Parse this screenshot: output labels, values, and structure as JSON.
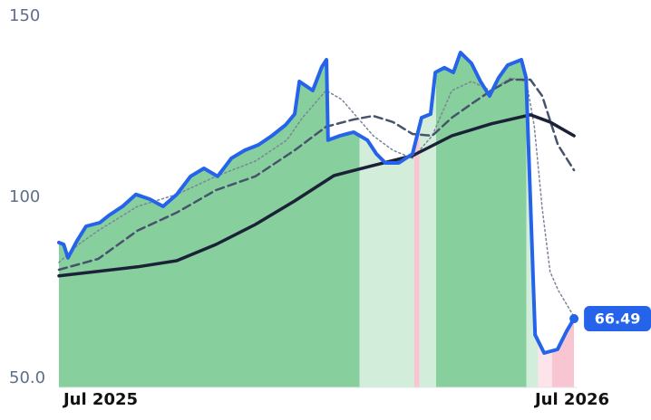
{
  "chart_data": {
    "type": "line",
    "xlim": [
      0,
      13.2
    ],
    "ylim": [
      50,
      150
    ],
    "xticks": [
      {
        "value": 0,
        "label": "Jul 2025"
      },
      {
        "value": 12,
        "label": "Jul 2026"
      }
    ],
    "yticks": [
      {
        "value": 50,
        "label": "50.0"
      },
      100,
      150
    ],
    "regions": [
      {
        "start": 0,
        "end": 7.65,
        "color": "#88cf9e"
      },
      {
        "start": 7.65,
        "end": 9.04,
        "color": "#d3eddb"
      },
      {
        "start": 9.04,
        "end": 9.18,
        "color": "#f8c6d2"
      },
      {
        "start": 9.18,
        "end": 9.6,
        "color": "#d3eddb"
      },
      {
        "start": 9.6,
        "end": 11.9,
        "color": "#88cf9e"
      },
      {
        "start": 11.9,
        "end": 12.2,
        "color": "#d3eddb"
      },
      {
        "start": 12.2,
        "end": 12.55,
        "color": "#fde3ea"
      },
      {
        "start": 12.55,
        "end": 13.11,
        "color": "#f8c6d2"
      }
    ],
    "series": [
      {
        "color": "#2563eb",
        "width": 4,
        "dash": "none",
        "fill": true,
        "x": [
          0,
          0.12,
          0.23,
          0.46,
          0.69,
          1.04,
          1.27,
          1.62,
          1.96,
          2.31,
          2.65,
          3.0,
          3.35,
          3.69,
          4.04,
          4.39,
          4.73,
          5.08,
          5.42,
          5.77,
          6.0,
          6.12,
          6.46,
          6.69,
          6.81,
          6.85,
          7.15,
          7.5,
          7.85,
          8.08,
          8.31,
          8.65,
          9.0,
          9.23,
          9.46,
          9.58,
          9.81,
          10.04,
          10.22,
          10.5,
          10.73,
          10.96,
          11.19,
          11.42,
          11.77,
          11.89,
          12.12,
          12.35,
          12.69,
          12.92,
          13.11
        ],
        "values": [
          87.5,
          87,
          83.3,
          88,
          92,
          93,
          95,
          97.5,
          100.8,
          99.5,
          97.5,
          100.8,
          105.8,
          108,
          105.8,
          110.8,
          113,
          114.5,
          117,
          120,
          123,
          132,
          129.5,
          136,
          138,
          115.8,
          117,
          118,
          115.8,
          112,
          109.5,
          109.5,
          112,
          122,
          123,
          134.5,
          135.8,
          134.5,
          140,
          137,
          132,
          128,
          133,
          136.5,
          138,
          133,
          62,
          57,
          58,
          63,
          66.49
        ]
      },
      {
        "color": "#1b2238",
        "width": 3.5,
        "dash": "none",
        "fill": false,
        "x": [
          0,
          2,
          3,
          4,
          5,
          6,
          7,
          8,
          9,
          10,
          11,
          12,
          12.5,
          13.11
        ],
        "values": [
          78.3,
          80.8,
          82.5,
          87,
          92.5,
          99,
          106,
          108.8,
          111.5,
          117,
          120.3,
          122.8,
          120.8,
          117
        ]
      },
      {
        "color": "#47536b",
        "width": 2.5,
        "dash": "9 5",
        "fill": false,
        "x": [
          0,
          1,
          2,
          3,
          4,
          5,
          6,
          6.8,
          7.5,
          8,
          8.5,
          9,
          9.5,
          10,
          10.5,
          11,
          11.5,
          12,
          12.3,
          12.7,
          13.11
        ],
        "values": [
          80,
          83,
          90.8,
          95.8,
          102,
          105.8,
          113,
          119.5,
          121.5,
          122.5,
          120.8,
          117.5,
          117,
          122,
          125.8,
          129.5,
          132.5,
          132.5,
          128,
          114.5,
          107.5
        ]
      },
      {
        "color": "#7a8599",
        "width": 1.5,
        "dash": "2 3",
        "fill": false,
        "x": [
          0,
          0.5,
          1,
          2,
          3,
          4,
          5,
          5.8,
          6.2,
          6.8,
          7.2,
          7.6,
          8,
          8.5,
          9,
          9.5,
          10,
          10.5,
          11,
          11.5,
          11.9,
          12.1,
          12.3,
          12.5,
          12.7,
          13.11
        ],
        "values": [
          82,
          87,
          90.8,
          97.5,
          100.8,
          105.8,
          110,
          115.8,
          122,
          129.5,
          127,
          122,
          117,
          113,
          110.8,
          117,
          129.5,
          132,
          129.5,
          133,
          132,
          119.5,
          97,
          79.5,
          74.5,
          67
        ]
      }
    ]
  }
}
